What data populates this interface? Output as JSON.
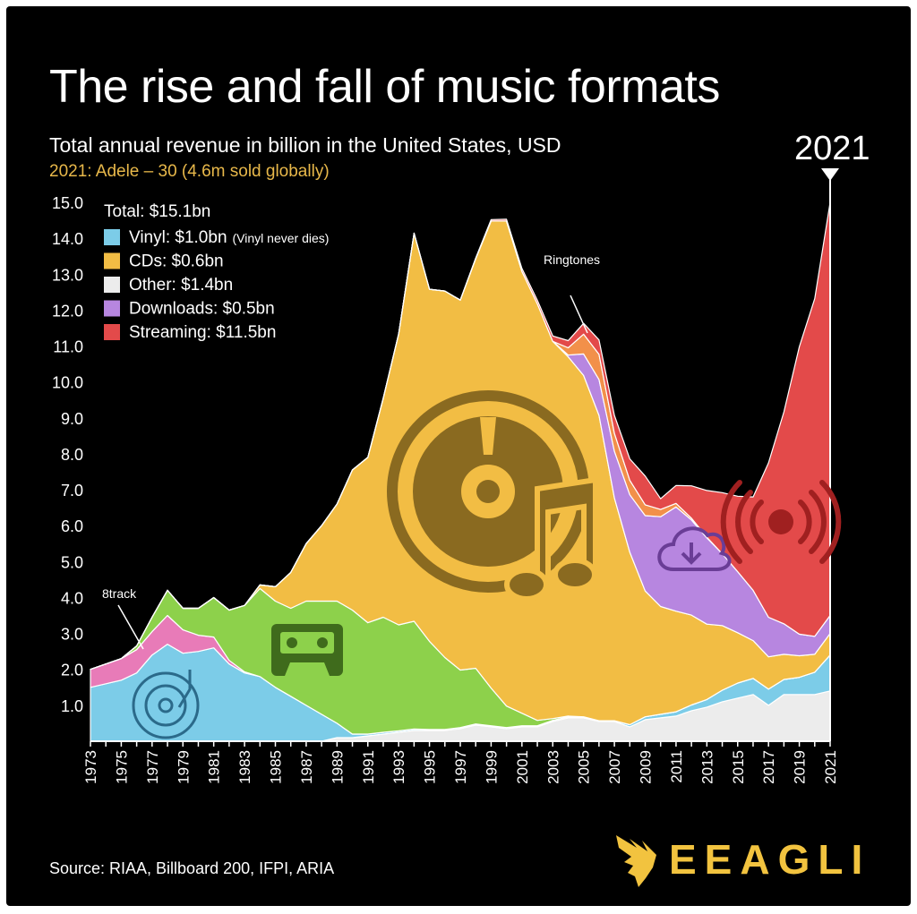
{
  "title": "The rise and fall of music formats",
  "subtitle": "Total annual revenue in billion in the United States, USD",
  "note": "2021: Adele – 30 (4.6m sold globally)",
  "year_marker": "2021",
  "source": "Source: RIAA, Billboard 200, IFPI, ARIA",
  "brand": "EEAGLI",
  "colors": {
    "vinyl": "#7ccce8",
    "eighttrack": "#e87bb8",
    "cassette": "#8dd14b",
    "cd": "#f2bd44",
    "other": "#ececec",
    "downloads": "#b786e0",
    "ringtones": "#f2904a",
    "streaming": "#e34a4a"
  },
  "icons": [
    "vinyl-record-icon",
    "cassette-icon",
    "cd-music-icon",
    "cloud-download-icon",
    "broadcast-icon",
    "eagle-logo-icon"
  ],
  "chart_data": {
    "type": "area",
    "stacked": true,
    "title": "The rise and fall of music formats",
    "ylim": [
      0,
      15
    ],
    "yticks": [
      "1.0",
      "2.0",
      "3.0",
      "4.0",
      "5.0",
      "6.0",
      "7.0",
      "8.0",
      "9.0",
      "10.0",
      "11.0",
      "12.0",
      "13.0",
      "14.0",
      "15.0"
    ],
    "x": [
      1973,
      1974,
      1975,
      1976,
      1977,
      1978,
      1979,
      1980,
      1981,
      1982,
      1983,
      1984,
      1985,
      1986,
      1987,
      1988,
      1989,
      1990,
      1991,
      1992,
      1993,
      1994,
      1995,
      1996,
      1997,
      1998,
      1999,
      2000,
      2001,
      2002,
      2003,
      2004,
      2005,
      2006,
      2007,
      2008,
      2009,
      2010,
      2011,
      2012,
      2013,
      2014,
      2015,
      2016,
      2017,
      2018,
      2019,
      2020,
      2021
    ],
    "xtick_labels": [
      "1973",
      "1975",
      "1977",
      "1979",
      "1981",
      "1983",
      "1985",
      "1987",
      "1989",
      "1991",
      "1993",
      "1995",
      "1997",
      "1999",
      "2001",
      "2003",
      "2005",
      "2007",
      "2009",
      "2011",
      "2013",
      "2015",
      "2017",
      "2019",
      "2021"
    ],
    "legend": {
      "total": "Total: $15.1bn",
      "items": [
        {
          "key": "vinyl",
          "label": "Vinyl: $1.0bn",
          "note": "(Vinyl never dies)"
        },
        {
          "key": "cd",
          "label": "CDs: $0.6bn",
          "note": ""
        },
        {
          "key": "other",
          "label": "Other: $1.4bn",
          "note": ""
        },
        {
          "key": "downloads",
          "label": "Downloads: $0.5bn",
          "note": ""
        },
        {
          "key": "streaming",
          "label": "Streaming: $11.5bn",
          "note": ""
        }
      ]
    },
    "annotations": [
      "8track",
      "Ringtones"
    ],
    "series": [
      {
        "key": "other",
        "values": [
          0,
          0,
          0,
          0,
          0,
          0,
          0,
          0,
          0,
          0,
          0,
          0,
          0,
          0,
          0,
          0,
          0.1,
          0.1,
          0.15,
          0.2,
          0.25,
          0.3,
          0.3,
          0.3,
          0.35,
          0.45,
          0.4,
          0.35,
          0.4,
          0.4,
          0.55,
          0.65,
          0.65,
          0.55,
          0.55,
          0.4,
          0.6,
          0.65,
          0.7,
          0.85,
          0.95,
          1.1,
          1.2,
          1.3,
          1.0,
          1.3,
          1.3,
          1.3,
          1.4
        ]
      },
      {
        "key": "vinyl",
        "values": [
          1.5,
          1.6,
          1.7,
          1.9,
          2.4,
          2.7,
          2.45,
          2.5,
          2.6,
          2.15,
          1.9,
          1.8,
          1.5,
          1.25,
          1.0,
          0.75,
          0.4,
          0.1,
          0.05,
          0.05,
          0.04,
          0.04,
          0.03,
          0.03,
          0.03,
          0.03,
          0.03,
          0.03,
          0.03,
          0.03,
          0.03,
          0.03,
          0.02,
          0.02,
          0.02,
          0.06,
          0.08,
          0.1,
          0.12,
          0.16,
          0.21,
          0.32,
          0.42,
          0.45,
          0.45,
          0.42,
          0.48,
          0.62,
          1.0
        ]
      },
      {
        "key": "eighttrack",
        "values": [
          0.5,
          0.55,
          0.6,
          0.65,
          0.65,
          0.8,
          0.65,
          0.45,
          0.3,
          0.1,
          0.03,
          0,
          0,
          0,
          0,
          0,
          0,
          0,
          0,
          0,
          0,
          0,
          0,
          0,
          0,
          0,
          0,
          0,
          0,
          0,
          0,
          0,
          0,
          0,
          0,
          0,
          0,
          0,
          0,
          0,
          0,
          0,
          0,
          0,
          0,
          0,
          0,
          0,
          0
        ]
      },
      {
        "key": "cassette",
        "values": [
          0,
          0,
          0,
          0.1,
          0.4,
          0.7,
          0.6,
          0.75,
          1.1,
          1.4,
          1.85,
          2.45,
          2.4,
          2.45,
          2.9,
          3.15,
          3.4,
          3.45,
          3.1,
          3.2,
          2.95,
          3.0,
          2.45,
          2.0,
          1.6,
          1.55,
          1.05,
          0.6,
          0.35,
          0.15,
          0.05,
          0.02,
          0.01,
          0,
          0,
          0,
          0,
          0,
          0,
          0,
          0,
          0,
          0,
          0,
          0,
          0,
          0,
          0,
          0
        ]
      },
      {
        "key": "cd",
        "values": [
          0,
          0,
          0,
          0,
          0,
          0,
          0,
          0,
          0,
          0,
          0,
          0.1,
          0.4,
          1.0,
          1.6,
          2.1,
          2.7,
          3.9,
          4.6,
          6.1,
          8.1,
          10.8,
          9.8,
          10.2,
          10.3,
          11.4,
          13.0,
          13.5,
          12.3,
          11.6,
          10.5,
          10.0,
          9.5,
          8.5,
          6.2,
          4.8,
          3.5,
          3.0,
          2.8,
          2.5,
          2.1,
          1.8,
          1.4,
          1.05,
          0.9,
          0.7,
          0.6,
          0.5,
          0.6
        ]
      },
      {
        "key": "downloads",
        "values": [
          0,
          0,
          0,
          0,
          0,
          0,
          0,
          0,
          0,
          0,
          0,
          0,
          0,
          0,
          0,
          0,
          0,
          0,
          0,
          0,
          0,
          0,
          0,
          0,
          0,
          0,
          0,
          0,
          0,
          0,
          0,
          0.05,
          0.6,
          1.0,
          1.3,
          1.6,
          2.1,
          2.5,
          2.9,
          2.65,
          2.4,
          2.0,
          1.7,
          1.4,
          1.1,
          0.85,
          0.6,
          0.5,
          0.5
        ]
      },
      {
        "key": "ringtones",
        "values": [
          0,
          0,
          0,
          0,
          0,
          0,
          0,
          0,
          0,
          0,
          0,
          0,
          0,
          0,
          0,
          0,
          0,
          0,
          0,
          0,
          0,
          0,
          0,
          0,
          0,
          0,
          0,
          0,
          0,
          0,
          0,
          0.2,
          0.55,
          0.7,
          0.5,
          0.4,
          0.3,
          0.2,
          0.1,
          0.05,
          0.02,
          0,
          0,
          0,
          0,
          0,
          0,
          0,
          0
        ]
      },
      {
        "key": "streaming",
        "values": [
          0,
          0,
          0,
          0,
          0,
          0,
          0,
          0,
          0,
          0,
          0,
          0,
          0,
          0,
          0,
          0,
          0,
          0,
          0,
          0,
          0,
          0,
          0,
          0,
          0,
          0.02,
          0.04,
          0.05,
          0.08,
          0.1,
          0.15,
          0.2,
          0.3,
          0.4,
          0.5,
          0.6,
          0.8,
          0.3,
          0.5,
          0.9,
          1.3,
          1.7,
          2.1,
          2.6,
          4.3,
          5.9,
          8.0,
          9.4,
          11.5
        ]
      }
    ]
  }
}
